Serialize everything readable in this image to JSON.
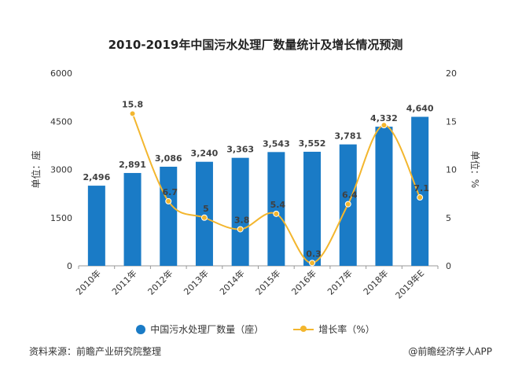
{
  "title": "2010-2019年中国污水处理厂数量统计及增长情况预测",
  "source": "资料来源：前瞻产业研究院整理",
  "brand": "@前瞻经济学人APP",
  "colors": {
    "bar": "#1A7BC6",
    "line": "#F3B62E",
    "axis": "#999999",
    "text": "#333333",
    "label": "#404040"
  },
  "chart_data": {
    "type": "bar",
    "categories": [
      "2010年",
      "2011年",
      "2012年",
      "2013年",
      "2014年",
      "2015年",
      "2016年",
      "2017年",
      "2018年",
      "2019年E"
    ],
    "series": [
      {
        "name": "中国污水处理厂数量（座）",
        "type": "bar",
        "axis": "left",
        "values": [
          2496,
          2891,
          3086,
          3240,
          3363,
          3543,
          3552,
          3781,
          4332,
          4640
        ],
        "labels": [
          "2,496",
          "2,891",
          "3,086",
          "3,240",
          "3,363",
          "3,543",
          "3,552",
          "3,781",
          "4,332",
          "4,640"
        ]
      },
      {
        "name": "增长率（%）",
        "type": "line",
        "axis": "right",
        "values": [
          null,
          15.8,
          6.7,
          5,
          3.8,
          5.4,
          0.3,
          6.4,
          14.6,
          7.1
        ],
        "labels": [
          "",
          "15.8",
          "6.7",
          "5",
          "3.8",
          "5.4",
          "0.3",
          "6.4",
          "",
          "7.1"
        ]
      }
    ],
    "y_left": {
      "label": "单位：座",
      "ylim": [
        0,
        6000
      ],
      "ticks": [
        0,
        1500,
        3000,
        4500,
        6000
      ]
    },
    "y_right": {
      "label": "单位：%",
      "ylim": [
        0,
        20
      ],
      "ticks": [
        0,
        5,
        10,
        15,
        20
      ]
    },
    "grid": false,
    "legend_position": "bottom"
  }
}
